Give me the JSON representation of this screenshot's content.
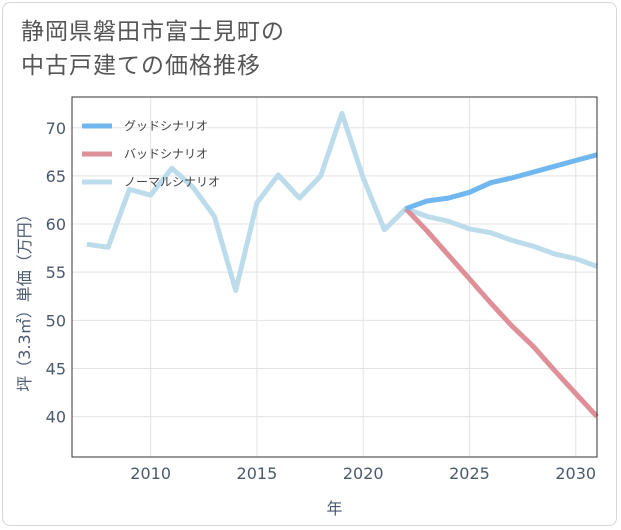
{
  "chart_data": {
    "type": "line",
    "title": [
      "静岡県磐田市富士見町の",
      "中古戸建ての価格推移"
    ],
    "xlabel": "年",
    "ylabel": "坪（3.3㎡）単価（万円）",
    "xlim": [
      2006.3,
      2031
    ],
    "ylim": [
      35.8,
      73.2
    ],
    "xticks": [
      2010,
      2015,
      2020,
      2025,
      2030
    ],
    "yticks": [
      40,
      45,
      50,
      55,
      60,
      65,
      70
    ],
    "series": [
      {
        "name": "グッドシナリオ",
        "color": "#6fb7ee",
        "x": [
          2022,
          2023,
          2024,
          2025,
          2026,
          2027,
          2028,
          2029,
          2030,
          2031
        ],
        "y": [
          61.6,
          62.4,
          62.7,
          63.3,
          64.3,
          64.8,
          65.4,
          66.0,
          66.6,
          67.2
        ]
      },
      {
        "name": "バッドシナリオ",
        "color": "#de8f98",
        "x": [
          2022,
          2023,
          2024,
          2025,
          2026,
          2027,
          2028,
          2029,
          2030,
          2031
        ],
        "y": [
          61.6,
          59.3,
          56.8,
          54.3,
          51.8,
          49.4,
          47.3,
          44.8,
          42.4,
          40.0
        ]
      },
      {
        "name": "ノーマルシナリオ",
        "color": "#bcdcec",
        "x": [
          2007,
          2008,
          2009,
          2010,
          2011,
          2012,
          2013,
          2014,
          2015,
          2016,
          2017,
          2018,
          2019,
          2020,
          2021,
          2022,
          2023,
          2024,
          2025,
          2026,
          2027,
          2028,
          2029,
          2030,
          2031
        ],
        "y": [
          57.9,
          57.6,
          63.6,
          63.0,
          65.8,
          63.8,
          60.8,
          53.1,
          62.2,
          65.1,
          62.7,
          65.0,
          71.5,
          64.8,
          59.4,
          61.6,
          60.8,
          60.3,
          59.5,
          59.1,
          58.3,
          57.7,
          56.9,
          56.4,
          55.6
        ]
      }
    ]
  }
}
